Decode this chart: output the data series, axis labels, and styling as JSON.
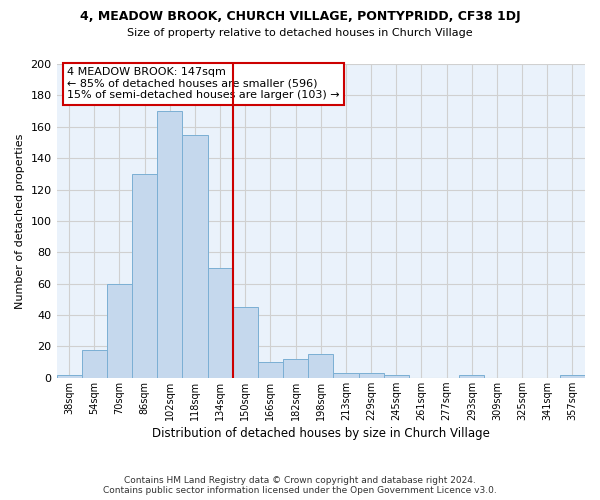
{
  "title": "4, MEADOW BROOK, CHURCH VILLAGE, PONTYPRIDD, CF38 1DJ",
  "subtitle": "Size of property relative to detached houses in Church Village",
  "xlabel": "Distribution of detached houses by size in Church Village",
  "ylabel": "Number of detached properties",
  "footer_line1": "Contains HM Land Registry data © Crown copyright and database right 2024.",
  "footer_line2": "Contains public sector information licensed under the Open Government Licence v3.0.",
  "annotation_line1": "4 MEADOW BROOK: 147sqm",
  "annotation_line2": "← 85% of detached houses are smaller (596)",
  "annotation_line3": "15% of semi-detached houses are larger (103) →",
  "bar_color": "#c5d8ed",
  "bar_edge_color": "#7bafd4",
  "vline_color": "#cc0000",
  "annotation_box_edge_color": "#cc0000",
  "annotation_box_face_color": "#ffffff",
  "categories": [
    "38sqm",
    "54sqm",
    "70sqm",
    "86sqm",
    "102sqm",
    "118sqm",
    "134sqm",
    "150sqm",
    "166sqm",
    "182sqm",
    "198sqm",
    "213sqm",
    "229sqm",
    "245sqm",
    "261sqm",
    "277sqm",
    "293sqm",
    "309sqm",
    "325sqm",
    "341sqm",
    "357sqm"
  ],
  "values": [
    2,
    18,
    60,
    130,
    170,
    155,
    70,
    45,
    10,
    12,
    15,
    3,
    3,
    2,
    0,
    0,
    2,
    0,
    0,
    0,
    2
  ],
  "vline_bin_index": 7.0,
  "ylim": [
    0,
    200
  ],
  "yticks": [
    0,
    20,
    40,
    60,
    80,
    100,
    120,
    140,
    160,
    180,
    200
  ],
  "grid_color": "#d0d0d0",
  "background_color": "#ffffff",
  "plot_bg_color": "#eaf2fb"
}
